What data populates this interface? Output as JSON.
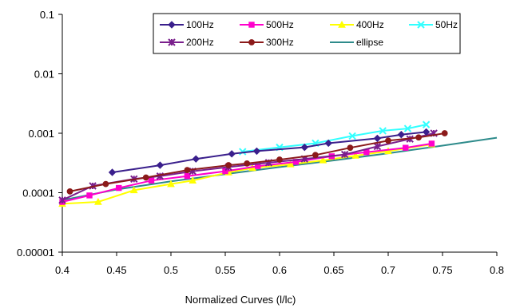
{
  "chart_data": {
    "type": "line",
    "title": "",
    "xlabel": "Normalized Curves (l/lc)",
    "ylabel": "",
    "xlim": [
      0.4,
      0.8
    ],
    "ylim": [
      1e-05,
      0.1
    ],
    "yscale": "log",
    "grid": false,
    "legend_position": "top",
    "x_ticks": [
      "0.4",
      "0.45",
      "0.5",
      "0.55",
      "0.6",
      "0.65",
      "0.7",
      "0.75",
      "0.8"
    ],
    "y_ticks": [
      "0.1",
      "0.01",
      "0.001",
      "0.0001",
      "0.00001"
    ],
    "series": [
      {
        "name": "100Hz",
        "color": "#3a1f8c",
        "marker": "diamond",
        "x": [
          0.446,
          0.49,
          0.523,
          0.556,
          0.579,
          0.623,
          0.645,
          0.69,
          0.712,
          0.735
        ],
        "y": [
          0.00022,
          0.00029,
          0.00037,
          0.00045,
          0.0005,
          0.00058,
          0.00068,
          0.00082,
          0.00095,
          0.00105
        ]
      },
      {
        "name": "500Hz",
        "color": "#ff00cc",
        "marker": "square",
        "x": [
          0.4,
          0.425,
          0.452,
          0.482,
          0.515,
          0.55,
          0.58,
          0.615,
          0.648,
          0.68,
          0.716,
          0.74
        ],
        "y": [
          7e-05,
          9e-05,
          0.00012,
          0.00016,
          0.00019,
          0.00023,
          0.00028,
          0.00033,
          0.00041,
          0.00048,
          0.00057,
          0.00067
        ]
      },
      {
        "name": "400Hz",
        "color": "#ffff00",
        "marker": "triangle",
        "x": [
          0.4,
          0.433,
          0.466,
          0.5,
          0.52,
          0.553,
          0.575,
          0.61,
          0.64,
          0.67,
          0.7,
          0.74
        ],
        "y": [
          6.5e-05,
          7e-05,
          0.00011,
          0.00014,
          0.00016,
          0.00022,
          0.00026,
          0.0003,
          0.00035,
          0.00042,
          0.0005,
          0.00065
        ]
      },
      {
        "name": "50Hz",
        "color": "#33ffff",
        "marker": "x",
        "x": [
          0.566,
          0.6,
          0.633,
          0.667,
          0.695,
          0.718,
          0.735
        ],
        "y": [
          0.00049,
          0.00058,
          0.00068,
          0.0009,
          0.0011,
          0.0012,
          0.0014
        ]
      },
      {
        "name": "200Hz",
        "color": "#7a1f8c",
        "marker": "star",
        "x": [
          0.4,
          0.428,
          0.466,
          0.49,
          0.52,
          0.553,
          0.59,
          0.623,
          0.66,
          0.69,
          0.72,
          0.742
        ],
        "y": [
          7.5e-05,
          0.00013,
          0.00017,
          0.00019,
          0.00023,
          0.00027,
          0.00032,
          0.00037,
          0.00044,
          0.0006,
          0.0008,
          0.001
        ]
      },
      {
        "name": "300Hz",
        "color": "#8b1a1a",
        "marker": "circle",
        "x": [
          0.407,
          0.44,
          0.477,
          0.515,
          0.553,
          0.57,
          0.6,
          0.633,
          0.665,
          0.7,
          0.728,
          0.752
        ],
        "y": [
          0.000105,
          0.00014,
          0.00018,
          0.00024,
          0.00029,
          0.00031,
          0.00036,
          0.00043,
          0.00057,
          0.00075,
          0.00085,
          0.001
        ]
      },
      {
        "name": "ellipse",
        "color": "#2e8b8b",
        "marker": "none",
        "x": [
          0.4,
          0.45,
          0.5,
          0.55,
          0.6,
          0.65,
          0.7,
          0.75,
          0.8
        ],
        "y": [
          7.5e-05,
          0.000113,
          0.000155,
          0.000205,
          0.00027,
          0.00035,
          0.00046,
          0.00062,
          0.00084
        ]
      }
    ]
  }
}
